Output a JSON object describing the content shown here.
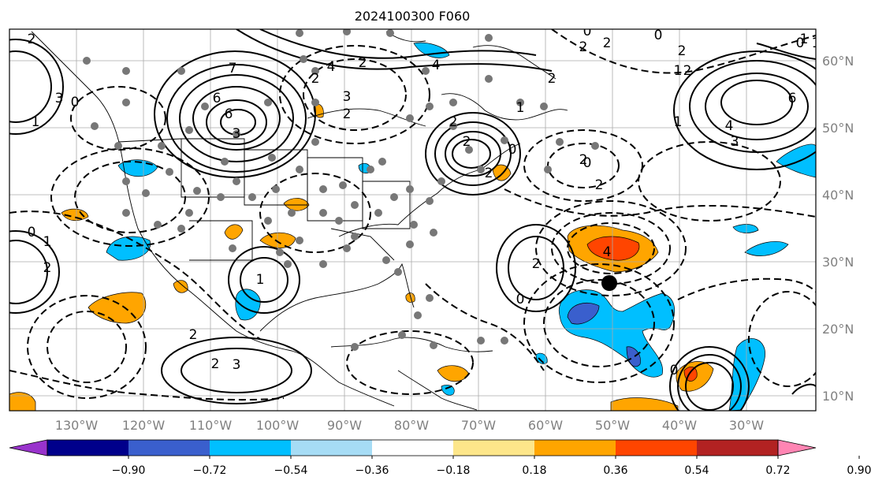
{
  "title": "2024100300 F060",
  "lon_labels": [
    "130°W",
    "120°W",
    "110°W",
    "100°W",
    "90°W",
    "80°W",
    "70°W",
    "60°W",
    "50°W",
    "40°W",
    "30°W"
  ],
  "lat_labels": [
    "60°N",
    "50°N",
    "40°N",
    "30°N",
    "20°N",
    "10°N"
  ],
  "colorbar": {
    "ticks": [
      "−0.90",
      "−0.72",
      "−0.54",
      "−0.36",
      "−0.18",
      "0.18",
      "0.36",
      "0.54",
      "0.72",
      "0.90"
    ],
    "colors": [
      "#9933cc",
      "#00008b",
      "#3a5fcd",
      "#00bfff",
      "#a6dcf5",
      "#ffffff",
      "#fde68a",
      "#ffa500",
      "#ff4500",
      "#b22222",
      "#ff85b3"
    ]
  },
  "contour_labels": [
    {
      "t": "2"
    },
    {
      "t": "0"
    },
    {
      "t": "3"
    },
    {
      "t": "1"
    },
    {
      "t": "7"
    },
    {
      "t": "6"
    },
    {
      "t": "6"
    },
    {
      "t": "3"
    },
    {
      "t": "4"
    },
    {
      "t": "2"
    },
    {
      "t": "2"
    },
    {
      "t": "3"
    },
    {
      "t": "2"
    },
    {
      "t": "4"
    },
    {
      "t": "2"
    },
    {
      "t": "2"
    },
    {
      "t": "2"
    },
    {
      "t": "0"
    },
    {
      "t": "1"
    },
    {
      "t": "2"
    },
    {
      "t": "2"
    },
    {
      "t": "0"
    },
    {
      "t": "2"
    },
    {
      "t": "0"
    },
    {
      "t": "2"
    },
    {
      "t": "1"
    },
    {
      "t": "2"
    },
    {
      "t": "1"
    },
    {
      "t": "1"
    },
    {
      "t": "0"
    },
    {
      "t": "1"
    },
    {
      "t": "6"
    },
    {
      "t": "4"
    },
    {
      "t": "3"
    },
    {
      "t": "2"
    },
    {
      "t": "0"
    },
    {
      "t": "2"
    },
    {
      "t": "4"
    },
    {
      "t": "2"
    },
    {
      "t": "1"
    },
    {
      "t": "2"
    },
    {
      "t": "0"
    },
    {
      "t": "1"
    },
    {
      "t": "2"
    },
    {
      "t": "3"
    },
    {
      "t": "2"
    },
    {
      "t": "0"
    },
    {
      "t": "0"
    }
  ]
}
